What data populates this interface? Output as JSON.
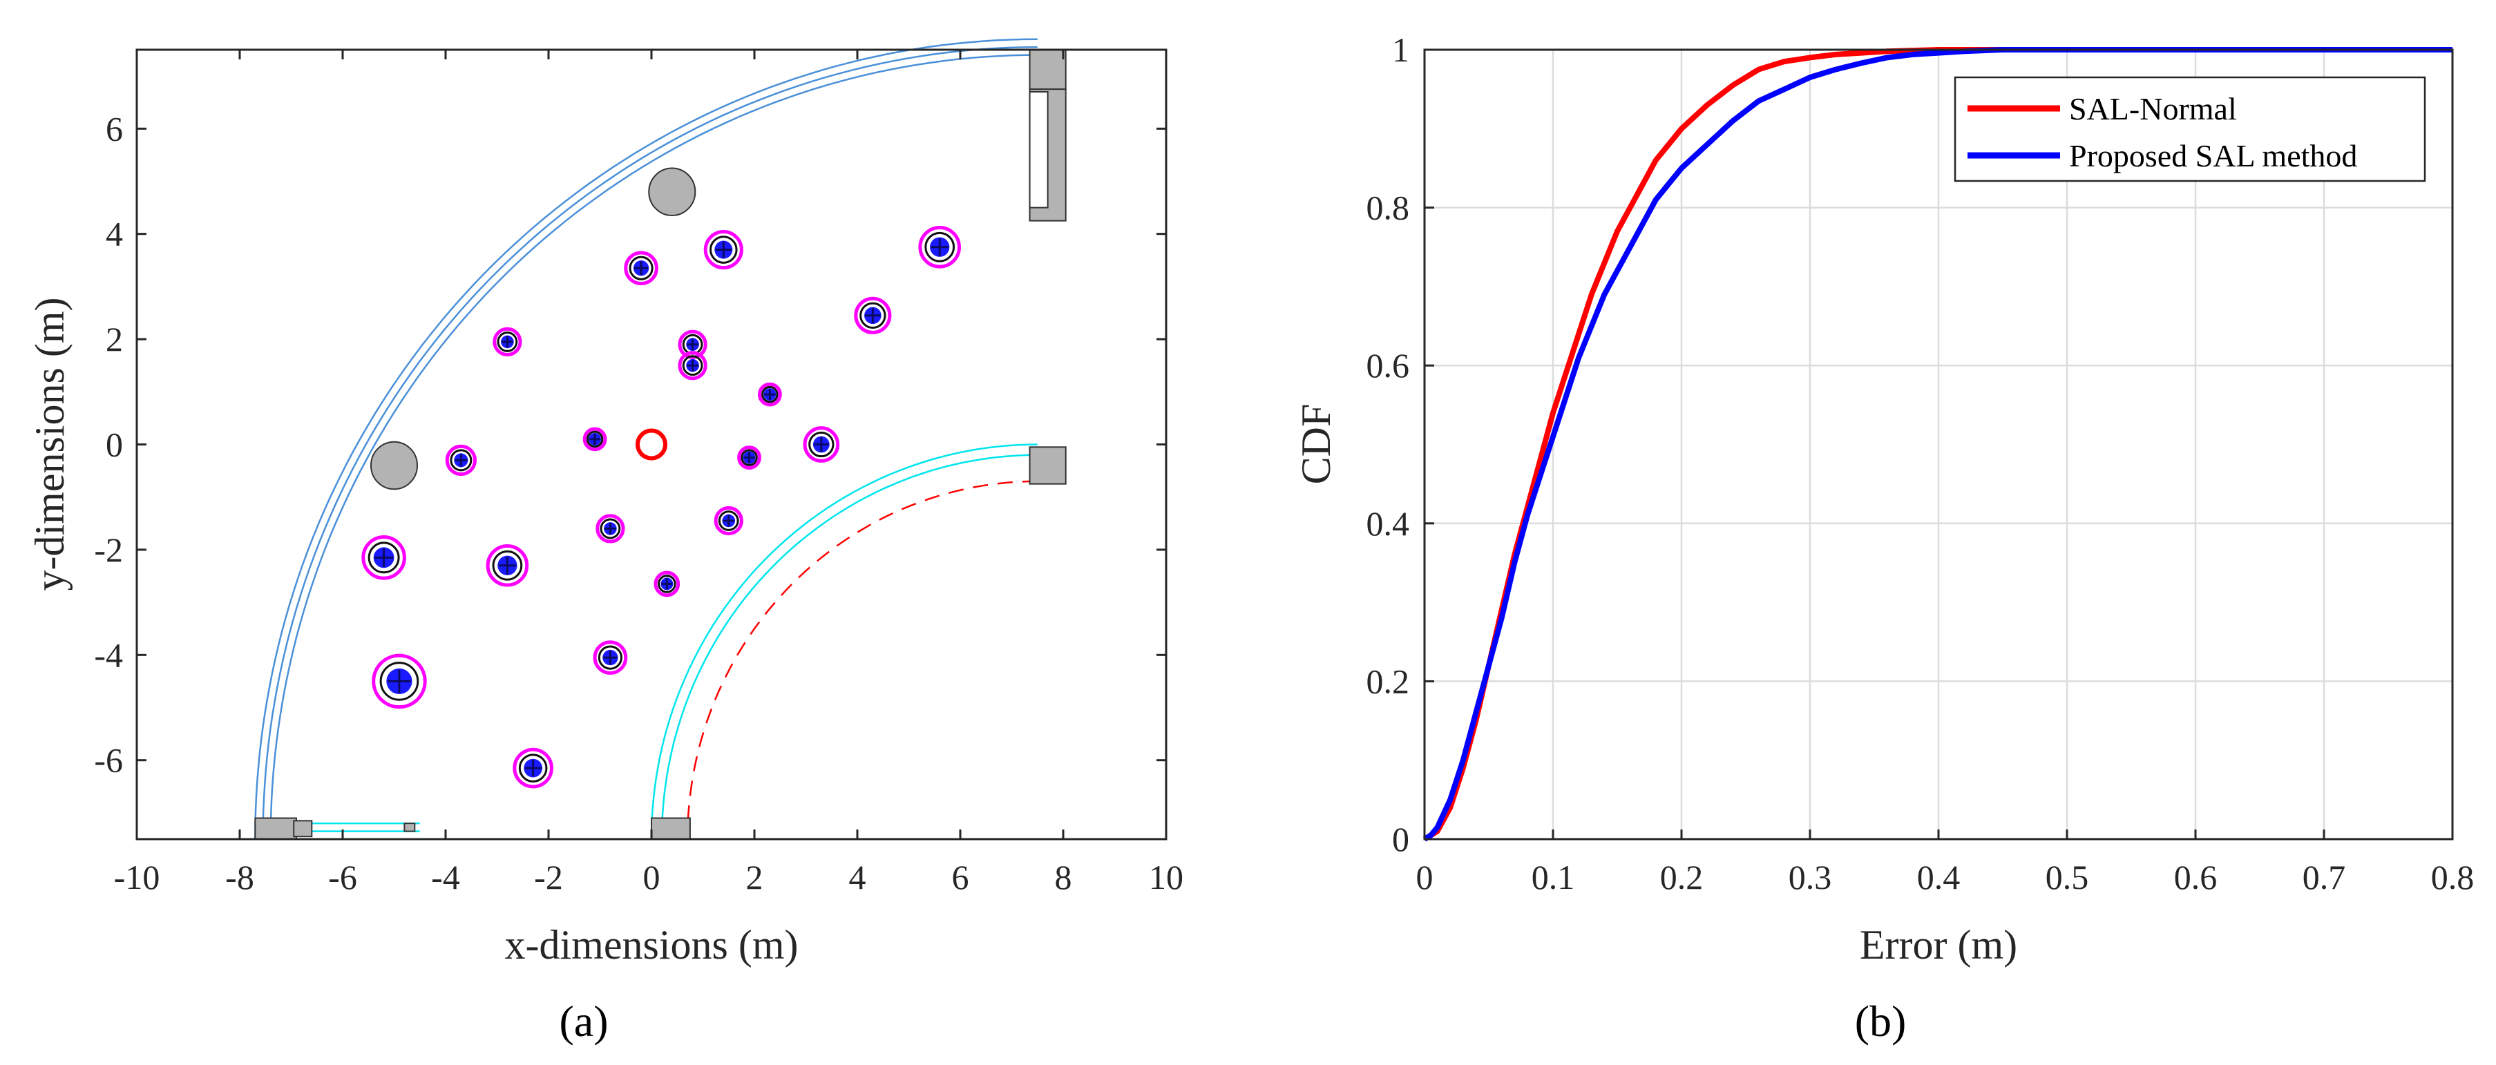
{
  "panel_a_label": "(a)",
  "panel_b_label": "(b)",
  "chart_data": [
    {
      "type": "scatter",
      "title": "",
      "xlabel": "x-dimensions (m)",
      "ylabel": "y-dimensions (m)",
      "xlim": [
        -10,
        10
      ],
      "ylim": [
        -7.5,
        7.5
      ],
      "xticks": [
        -10,
        -8,
        -6,
        -4,
        -2,
        0,
        2,
        4,
        6,
        8,
        10
      ],
      "yticks": [
        -6,
        -4,
        -2,
        0,
        2,
        4,
        6
      ],
      "colors": {
        "marker_ring": "#ff00ff",
        "marker_fill": "#1a1aff",
        "reference": "#ff0000",
        "obstacle": "#b3b3b3",
        "outer_wall": "#4a90d9",
        "inner_wall": "#00e5ee",
        "path": "#ff0000"
      },
      "reference_point": {
        "x": 0,
        "y": 0
      },
      "obstacles": [
        {
          "x": 0.4,
          "y": 4.8,
          "r": 0.45
        },
        {
          "x": -5.0,
          "y": -0.4,
          "r": 0.45
        }
      ],
      "points": [
        {
          "x": -0.2,
          "y": 3.35,
          "size": 0.3
        },
        {
          "x": 1.4,
          "y": 3.7,
          "size": 0.35
        },
        {
          "x": 5.6,
          "y": 3.75,
          "size": 0.38
        },
        {
          "x": -2.8,
          "y": 1.95,
          "size": 0.25
        },
        {
          "x": 0.8,
          "y": 1.9,
          "size": 0.25
        },
        {
          "x": 4.3,
          "y": 2.45,
          "size": 0.33
        },
        {
          "x": 0.8,
          "y": 1.5,
          "size": 0.25
        },
        {
          "x": 2.3,
          "y": 0.95,
          "size": 0.2
        },
        {
          "x": -1.1,
          "y": 0.1,
          "size": 0.2
        },
        {
          "x": -3.7,
          "y": -0.3,
          "size": 0.27
        },
        {
          "x": 1.9,
          "y": -0.25,
          "size": 0.2
        },
        {
          "x": 3.3,
          "y": 0.0,
          "size": 0.32
        },
        {
          "x": -0.8,
          "y": -1.6,
          "size": 0.25
        },
        {
          "x": 1.5,
          "y": -1.45,
          "size": 0.25
        },
        {
          "x": -5.2,
          "y": -2.15,
          "size": 0.4
        },
        {
          "x": -2.8,
          "y": -2.3,
          "size": 0.38
        },
        {
          "x": 0.3,
          "y": -2.65,
          "size": 0.22
        },
        {
          "x": -0.8,
          "y": -4.05,
          "size": 0.3
        },
        {
          "x": -4.9,
          "y": -4.5,
          "size": 0.5
        },
        {
          "x": -2.3,
          "y": -6.15,
          "size": 0.36
        }
      ]
    },
    {
      "type": "line",
      "title": "",
      "xlabel": "Error (m)",
      "ylabel": "CDF",
      "xlim": [
        0,
        0.8
      ],
      "ylim": [
        0,
        1
      ],
      "xticks": [
        "0",
        "0.1",
        "0.2",
        "0.3",
        "0.4",
        "0.5",
        "0.6",
        "0.7",
        "0.8"
      ],
      "yticks": [
        "0",
        "0.2",
        "0.4",
        "0.6",
        "0.8",
        "1"
      ],
      "grid": true,
      "legend_position": "top-right",
      "series": [
        {
          "name": "SAL-Normal",
          "color": "#ff0000",
          "x": [
            0,
            0.005,
            0.01,
            0.02,
            0.03,
            0.04,
            0.05,
            0.06,
            0.07,
            0.08,
            0.09,
            0.1,
            0.11,
            0.12,
            0.13,
            0.14,
            0.15,
            0.16,
            0.17,
            0.18,
            0.19,
            0.2,
            0.22,
            0.24,
            0.26,
            0.28,
            0.3,
            0.32,
            0.34,
            0.36,
            0.38,
            0.4,
            0.45,
            0.5,
            0.6,
            0.7,
            0.8
          ],
          "y": [
            0,
            0.005,
            0.01,
            0.04,
            0.09,
            0.15,
            0.22,
            0.29,
            0.36,
            0.42,
            0.48,
            0.54,
            0.59,
            0.64,
            0.69,
            0.73,
            0.77,
            0.8,
            0.83,
            0.86,
            0.88,
            0.9,
            0.93,
            0.955,
            0.975,
            0.985,
            0.99,
            0.994,
            0.996,
            0.998,
            0.999,
            1.0,
            1.0,
            1.0,
            1.0,
            1.0,
            1.0
          ]
        },
        {
          "name": "Proposed SAL method",
          "color": "#0000ff",
          "x": [
            0,
            0.005,
            0.01,
            0.02,
            0.03,
            0.04,
            0.05,
            0.06,
            0.07,
            0.08,
            0.09,
            0.1,
            0.11,
            0.12,
            0.13,
            0.14,
            0.15,
            0.16,
            0.17,
            0.18,
            0.19,
            0.2,
            0.22,
            0.24,
            0.26,
            0.28,
            0.3,
            0.32,
            0.34,
            0.36,
            0.38,
            0.4,
            0.42,
            0.45,
            0.5,
            0.6,
            0.7,
            0.8
          ],
          "y": [
            0,
            0.005,
            0.015,
            0.05,
            0.1,
            0.16,
            0.22,
            0.28,
            0.35,
            0.41,
            0.46,
            0.51,
            0.56,
            0.61,
            0.65,
            0.69,
            0.72,
            0.75,
            0.78,
            0.81,
            0.83,
            0.85,
            0.88,
            0.91,
            0.935,
            0.95,
            0.965,
            0.975,
            0.983,
            0.99,
            0.994,
            0.996,
            0.998,
            1.0,
            1.0,
            1.0,
            1.0,
            1.0
          ]
        }
      ]
    }
  ]
}
